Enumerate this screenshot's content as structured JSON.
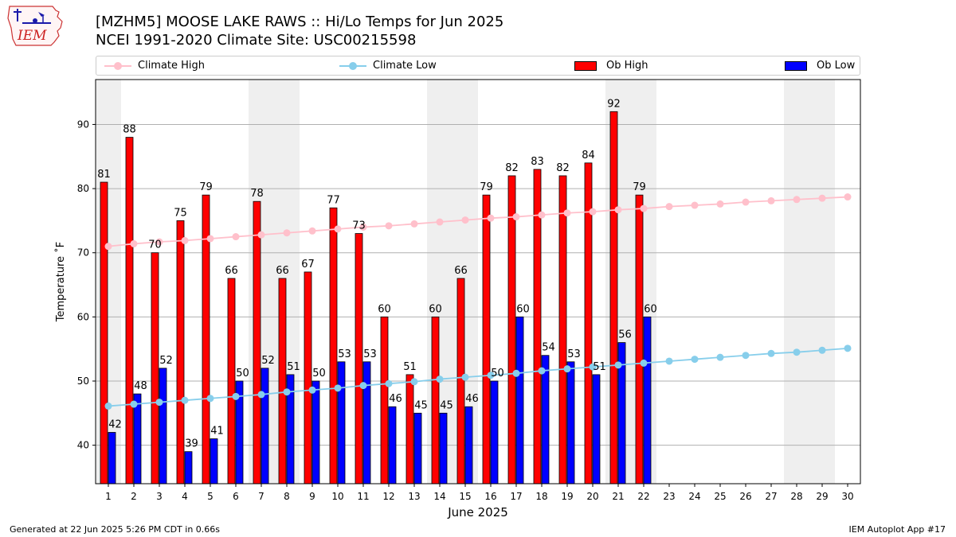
{
  "header": {
    "title_line1": "[MZHM5] MOOSE LAKE RAWS :: Hi/Lo Temps for Jun 2025",
    "title_line2": "NCEI 1991-2020 Climate Site: USC00215598",
    "logo_text": "IEM"
  },
  "legend": {
    "items": [
      {
        "label": "Climate High",
        "kind": "line",
        "color": "#ffc0cb"
      },
      {
        "label": "Climate Low",
        "kind": "line",
        "color": "#87ceeb"
      },
      {
        "label": "Ob High",
        "kind": "bar",
        "color": "#ff0000"
      },
      {
        "label": "Ob Low",
        "kind": "bar",
        "color": "#0000ff"
      }
    ]
  },
  "footer": {
    "left": "Generated at 22 Jun 2025 5:26 PM CDT in 0.66s",
    "right": "IEM Autoplot App #17"
  },
  "chart_data": {
    "type": "bar",
    "xlabel": "June 2025",
    "ylabel": "Temperature ˚F",
    "ylim": [
      34,
      97
    ],
    "yticks": [
      40,
      50,
      60,
      70,
      80,
      90
    ],
    "xticks": [
      1,
      2,
      3,
      4,
      5,
      6,
      7,
      8,
      9,
      10,
      11,
      12,
      13,
      14,
      15,
      16,
      17,
      18,
      19,
      20,
      21,
      22,
      23,
      24,
      25,
      26,
      27,
      28,
      29,
      30
    ],
    "grid": "y",
    "legend_position": "top",
    "weekend_days": [
      1,
      7,
      8,
      14,
      15,
      21,
      22,
      28,
      29
    ],
    "weekend_color": "#efefef",
    "ob_high": [
      81,
      88,
      70,
      75,
      79,
      66,
      78,
      66,
      67,
      77,
      73,
      60,
      51,
      60,
      66,
      79,
      82,
      83,
      82,
      84,
      92,
      79
    ],
    "ob_low": [
      42,
      48,
      52,
      39,
      41,
      50,
      52,
      51,
      50,
      53,
      53,
      46,
      45,
      45,
      46,
      50,
      60,
      54,
      53,
      51,
      56,
      60
    ],
    "climate_high": [
      71.0,
      71.4,
      71.7,
      71.9,
      72.2,
      72.5,
      72.8,
      73.1,
      73.4,
      73.7,
      74.0,
      74.2,
      74.5,
      74.8,
      75.1,
      75.4,
      75.6,
      75.9,
      76.2,
      76.4,
      76.7,
      76.9,
      77.2,
      77.4,
      77.6,
      77.9,
      78.1,
      78.3,
      78.5,
      78.7
    ],
    "climate_low": [
      46.1,
      46.4,
      46.7,
      47.0,
      47.3,
      47.6,
      47.9,
      48.3,
      48.6,
      48.9,
      49.3,
      49.6,
      49.9,
      50.3,
      50.6,
      50.9,
      51.2,
      51.6,
      51.9,
      52.2,
      52.5,
      52.8,
      53.1,
      53.4,
      53.7,
      54.0,
      54.3,
      54.5,
      54.8,
      55.1
    ],
    "colors": {
      "ob_high": "#ff0000",
      "ob_low": "#0000ff",
      "climate_high": "#ffc0cb",
      "climate_low": "#87ceeb"
    }
  }
}
